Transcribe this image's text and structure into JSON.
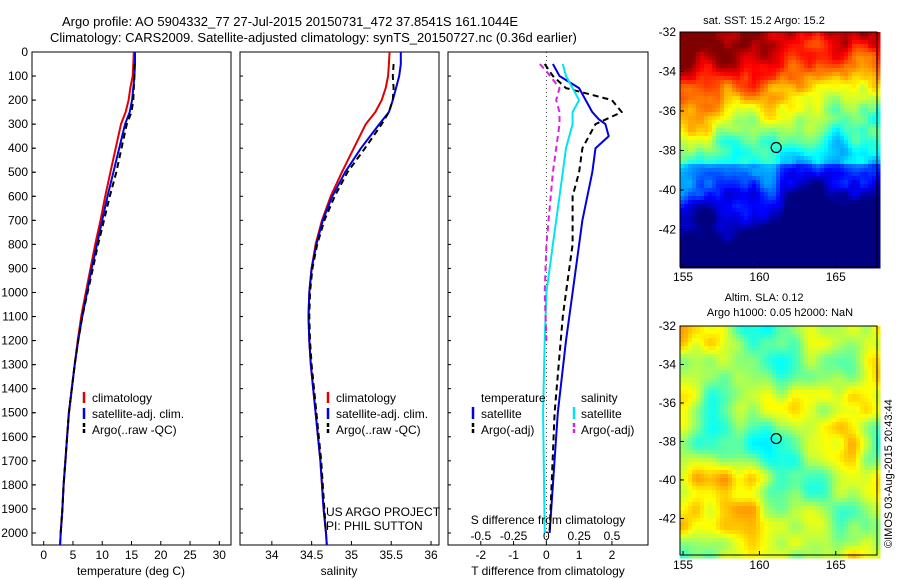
{
  "header": {
    "title1": "Argo profile: AO 5904332_77 27-Jul-2015 20150731_472 37.8541S 161.1044E",
    "title2": "Climatology: CARS2009. Satellite-adjusted climatology: synTS_20150727.nc (0.36d earlier)"
  },
  "colors": {
    "climatology": "#e00000",
    "satellite": "#0000e0",
    "argo": "#000000",
    "sal_sat": "#00e5ee",
    "sal_argo": "#e020e0"
  },
  "chart_data": [
    {
      "type": "line",
      "panel": "temperature",
      "xlabel": "temperature (deg C)",
      "ylim": [
        2050,
        0
      ],
      "xlim": [
        -2,
        32
      ],
      "xticks": [
        0,
        5,
        10,
        15,
        20,
        25,
        30
      ],
      "yticks": [
        0,
        100,
        200,
        300,
        400,
        500,
        600,
        700,
        800,
        900,
        1000,
        1100,
        1200,
        1300,
        1400,
        1500,
        1600,
        1700,
        1800,
        1900,
        2000
      ],
      "legend": [
        "climatology",
        "satellite-adj. clim.",
        "Argo(..raw -QC)"
      ],
      "series": [
        {
          "name": "climatology",
          "color": "#e00000",
          "dash": "",
          "points": [
            [
              15.4,
              0
            ],
            [
              15.3,
              50
            ],
            [
              15.2,
              100
            ],
            [
              14.8,
              150
            ],
            [
              14.5,
              200
            ],
            [
              14.0,
              250
            ],
            [
              13.2,
              300
            ],
            [
              12.3,
              400
            ],
            [
              11.4,
              500
            ],
            [
              10.5,
              600
            ],
            [
              9.7,
              700
            ],
            [
              8.8,
              800
            ],
            [
              8.0,
              900
            ],
            [
              7.2,
              1000
            ],
            [
              6.4,
              1100
            ],
            [
              5.8,
              1200
            ],
            [
              5.3,
              1300
            ],
            [
              4.8,
              1400
            ],
            [
              4.3,
              1500
            ],
            [
              4.0,
              1600
            ],
            [
              3.7,
              1700
            ],
            [
              3.4,
              1800
            ],
            [
              3.2,
              1900
            ],
            [
              2.9,
              2000
            ],
            [
              2.8,
              2050
            ]
          ]
        },
        {
          "name": "satellite-adj. clim.",
          "color": "#0000e0",
          "dash": "",
          "points": [
            [
              15.6,
              0
            ],
            [
              15.6,
              50
            ],
            [
              15.5,
              100
            ],
            [
              15.3,
              150
            ],
            [
              15.1,
              200
            ],
            [
              14.7,
              250
            ],
            [
              13.9,
              300
            ],
            [
              12.9,
              400
            ],
            [
              11.9,
              500
            ],
            [
              10.9,
              600
            ],
            [
              10.0,
              700
            ],
            [
              9.1,
              800
            ],
            [
              8.2,
              900
            ],
            [
              7.4,
              1000
            ],
            [
              6.6,
              1100
            ],
            [
              5.9,
              1200
            ],
            [
              5.3,
              1300
            ],
            [
              4.8,
              1400
            ],
            [
              4.3,
              1500
            ],
            [
              4.0,
              1600
            ],
            [
              3.7,
              1700
            ],
            [
              3.4,
              1800
            ],
            [
              3.2,
              1900
            ],
            [
              2.9,
              2000
            ],
            [
              2.8,
              2050
            ]
          ]
        },
        {
          "name": "Argo(..raw -QC)",
          "color": "#000000",
          "dash": "6,4",
          "points": [
            [
              15.5,
              50
            ],
            [
              15.5,
              100
            ],
            [
              15.4,
              150
            ],
            [
              15.3,
              200
            ],
            [
              15.0,
              250
            ],
            [
              14.2,
              300
            ],
            [
              13.3,
              400
            ],
            [
              12.4,
              500
            ],
            [
              11.3,
              600
            ],
            [
              10.3,
              700
            ],
            [
              9.3,
              800
            ],
            [
              8.4,
              900
            ],
            [
              7.5,
              1000
            ],
            [
              6.6,
              1100
            ],
            [
              5.9,
              1200
            ],
            [
              5.3,
              1300
            ],
            [
              4.8,
              1400
            ],
            [
              4.3,
              1500
            ],
            [
              4.0,
              1600
            ],
            [
              3.7,
              1700
            ],
            [
              3.4,
              1800
            ],
            [
              3.2,
              1900
            ],
            [
              2.9,
              2000
            ]
          ]
        }
      ]
    },
    {
      "type": "line",
      "panel": "salinity",
      "xlabel": "salinity",
      "ylim": [
        2050,
        0
      ],
      "xlim": [
        33.6,
        36.1
      ],
      "xticks": [
        34,
        34.5,
        35,
        35.5,
        36
      ],
      "xticklabels": [
        "34",
        "34.5",
        "35",
        "35.5",
        "36"
      ],
      "legend": [
        "climatology",
        "satellite-adj. clim.",
        "Argo(..raw -QC)"
      ],
      "annotation1": "US ARGO PROJECT",
      "annotation2": "PI: PHIL SUTTON",
      "series": [
        {
          "name": "climatology",
          "color": "#e00000",
          "dash": "",
          "points": [
            [
              35.48,
              0
            ],
            [
              35.47,
              50
            ],
            [
              35.46,
              100
            ],
            [
              35.43,
              150
            ],
            [
              35.38,
              200
            ],
            [
              35.3,
              250
            ],
            [
              35.18,
              300
            ],
            [
              35.03,
              400
            ],
            [
              34.88,
              500
            ],
            [
              34.74,
              600
            ],
            [
              34.63,
              700
            ],
            [
              34.55,
              800
            ],
            [
              34.5,
              900
            ],
            [
              34.47,
              1000
            ],
            [
              34.46,
              1100
            ],
            [
              34.47,
              1200
            ],
            [
              34.49,
              1300
            ],
            [
              34.52,
              1400
            ],
            [
              34.55,
              1500
            ],
            [
              34.58,
              1600
            ],
            [
              34.61,
              1700
            ],
            [
              34.63,
              1800
            ],
            [
              34.65,
              1900
            ],
            [
              34.68,
              2000
            ],
            [
              34.69,
              2050
            ]
          ]
        },
        {
          "name": "satellite-adj. clim.",
          "color": "#0000e0",
          "dash": "",
          "points": [
            [
              35.62,
              0
            ],
            [
              35.62,
              50
            ],
            [
              35.6,
              100
            ],
            [
              35.56,
              150
            ],
            [
              35.52,
              200
            ],
            [
              35.47,
              250
            ],
            [
              35.35,
              300
            ],
            [
              35.12,
              400
            ],
            [
              34.92,
              500
            ],
            [
              34.76,
              600
            ],
            [
              34.64,
              700
            ],
            [
              34.56,
              800
            ],
            [
              34.5,
              900
            ],
            [
              34.47,
              1000
            ],
            [
              34.46,
              1100
            ],
            [
              34.47,
              1200
            ],
            [
              34.49,
              1300
            ],
            [
              34.52,
              1400
            ],
            [
              34.55,
              1500
            ],
            [
              34.58,
              1600
            ],
            [
              34.61,
              1700
            ],
            [
              34.63,
              1800
            ],
            [
              34.65,
              1900
            ],
            [
              34.68,
              2000
            ],
            [
              34.69,
              2050
            ]
          ]
        },
        {
          "name": "Argo(..raw -QC)",
          "color": "#000000",
          "dash": "6,4",
          "points": [
            [
              35.53,
              50
            ],
            [
              35.52,
              100
            ],
            [
              35.53,
              150
            ],
            [
              35.52,
              200
            ],
            [
              35.47,
              250
            ],
            [
              35.38,
              300
            ],
            [
              35.17,
              400
            ],
            [
              34.95,
              500
            ],
            [
              34.79,
              600
            ],
            [
              34.66,
              700
            ],
            [
              34.57,
              800
            ],
            [
              34.51,
              900
            ],
            [
              34.48,
              1000
            ],
            [
              34.47,
              1100
            ],
            [
              34.48,
              1200
            ],
            [
              34.5,
              1300
            ],
            [
              34.53,
              1400
            ],
            [
              34.56,
              1500
            ],
            [
              34.59,
              1600
            ],
            [
              34.62,
              1700
            ],
            [
              34.64,
              1800
            ],
            [
              34.66,
              1900
            ],
            [
              34.68,
              2000
            ]
          ]
        }
      ]
    },
    {
      "type": "line",
      "panel": "difference",
      "xlabel": "T difference from climatology",
      "xlabel_top": "S difference from climatology",
      "ylim": [
        2050,
        0
      ],
      "xlim": [
        -3,
        3.1
      ],
      "xticks": [
        -2,
        -1,
        0,
        1,
        2
      ],
      "xticklabels": [
        "-2",
        "-1",
        "0",
        "1",
        "2"
      ],
      "sticks": [
        -2,
        -1,
        0,
        1,
        2
      ],
      "sticklabels": [
        "-0.5",
        "-0.25",
        "0",
        "0.25",
        "0.5"
      ],
      "legend_title_left": "temperature",
      "legend_title_right": "salinity",
      "legend": [
        "satellite",
        "Argo(-adj)",
        "satellite",
        "Argo(-adj)"
      ],
      "series": [
        {
          "name": "temperature satellite",
          "color": "#0000e0",
          "dash": "",
          "points": [
            [
              0.2,
              50
            ],
            [
              0.4,
              100
            ],
            [
              1.0,
              150
            ],
            [
              1.2,
              200
            ],
            [
              1.4,
              250
            ],
            [
              1.6,
              280
            ],
            [
              1.8,
              300
            ],
            [
              1.9,
              350
            ],
            [
              1.5,
              400
            ],
            [
              1.4,
              500
            ],
            [
              1.1,
              700
            ],
            [
              0.8,
              1000
            ],
            [
              0.6,
              1200
            ],
            [
              0.35,
              1500
            ],
            [
              0.2,
              1800
            ],
            [
              0.1,
              2000
            ]
          ]
        },
        {
          "name": "temperature Argo(-adj)",
          "color": "#000000",
          "dash": "6,4",
          "points": [
            [
              -0.05,
              50
            ],
            [
              0.2,
              100
            ],
            [
              0.6,
              150
            ],
            [
              2.0,
              200
            ],
            [
              2.3,
              250
            ],
            [
              1.5,
              300
            ],
            [
              1.1,
              400
            ],
            [
              1.0,
              500
            ],
            [
              0.8,
              600
            ],
            [
              0.8,
              800
            ],
            [
              0.6,
              1000
            ],
            [
              0.5,
              1100
            ],
            [
              0.25,
              1500
            ],
            [
              0.1,
              2000
            ]
          ]
        },
        {
          "name": "salinity satellite",
          "color": "#00e5ee",
          "dash": "",
          "points": [
            [
              0.5,
              50
            ],
            [
              0.6,
              100
            ],
            [
              0.8,
              150
            ],
            [
              1.0,
              200
            ],
            [
              0.8,
              250
            ],
            [
              0.8,
              300
            ],
            [
              0.6,
              400
            ],
            [
              0.5,
              500
            ],
            [
              0.2,
              800
            ],
            [
              0.0,
              1000
            ],
            [
              -0.05,
              1200
            ],
            [
              -0.1,
              1500
            ],
            [
              -0.05,
              2000
            ]
          ]
        },
        {
          "name": "salinity Argo(-adj)",
          "color": "#e020e0",
          "dash": "6,4",
          "points": [
            [
              -0.2,
              50
            ],
            [
              0.0,
              80
            ],
            [
              0.4,
              150
            ],
            [
              0.3,
              200
            ],
            [
              0.4,
              250
            ],
            [
              0.4,
              300
            ],
            [
              0.3,
              400
            ],
            [
              0.2,
              500
            ],
            [
              0.0,
              800
            ],
            [
              -0.05,
              1000
            ],
            [
              0.0,
              1200
            ]
          ]
        }
      ]
    }
  ],
  "maps": [
    {
      "panel": "sst",
      "title": "sat. SST: 15.2 Argo: 15.2",
      "xticks": [
        155,
        160,
        165
      ],
      "yticks": [
        -32,
        -34,
        -36,
        -38,
        -40,
        -42
      ],
      "xlim": [
        154.8,
        167.7
      ],
      "ylim": [
        -43.9,
        -32
      ],
      "marker": [
        161.1,
        -37.85
      ]
    },
    {
      "panel": "sla",
      "title1": "Altim. SLA: 0.12",
      "title2": "Argo h1000: 0.05 h2000: NaN",
      "xticks": [
        155,
        160,
        165
      ],
      "yticks": [
        -32,
        -34,
        -36,
        -38,
        -40,
        -42
      ],
      "xlim": [
        154.8,
        167.7
      ],
      "ylim": [
        -43.9,
        -32
      ],
      "marker": [
        161.1,
        -37.85
      ]
    }
  ],
  "credit": "©IMOS 03-Aug-2015 20:43:44"
}
